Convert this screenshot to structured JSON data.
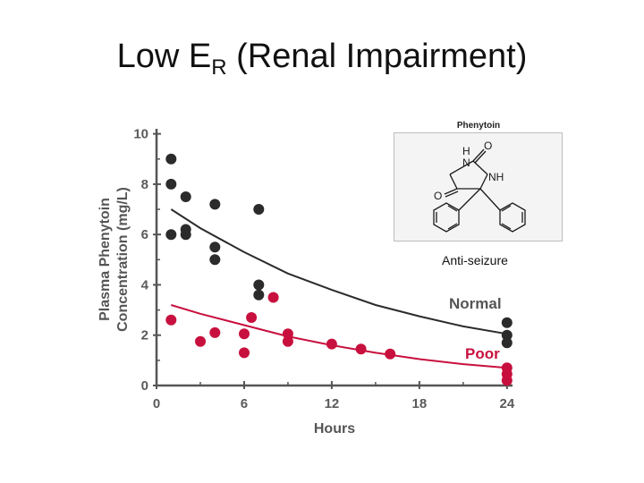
{
  "slide": {
    "title_main": "Low E",
    "title_sub": "R",
    "title_rest": " (Renal Impairment)"
  },
  "molecule": {
    "name": "Phenytoin",
    "caption": "Anti-seizure",
    "atoms": {
      "h": "H",
      "n": "N",
      "o": "O",
      "nh": "NH"
    }
  },
  "chart_data": {
    "type": "scatter",
    "xlabel": "Hours",
    "ylabel": "Plasma Phenytoin Concentration (mg/L)",
    "ylabel_lines": [
      "Plasma Phenytoin",
      "Concentration (mg/L)"
    ],
    "xlim": [
      0,
      24.5
    ],
    "ylim": [
      0,
      10.2
    ],
    "x_ticks": [
      "0",
      "6",
      "12",
      "18",
      "24"
    ],
    "y_ticks": [
      "0",
      "2",
      "4",
      "6",
      "8",
      "10"
    ],
    "x_tick_values": [
      0,
      6,
      12,
      18,
      24
    ],
    "y_tick_values": [
      0,
      2,
      4,
      6,
      8,
      10
    ],
    "grid": false,
    "colors": {
      "normal": "#2b2b2b",
      "poor": "#c8103e",
      "axis": "#555555"
    },
    "series": [
      {
        "name": "Normal",
        "color": "#2b2b2b",
        "points": [
          [
            1,
            9.0
          ],
          [
            1,
            8.0
          ],
          [
            1,
            6.0
          ],
          [
            2,
            7.5
          ],
          [
            2,
            6.2
          ],
          [
            2,
            6.0
          ],
          [
            4,
            7.2
          ],
          [
            4,
            5.5
          ],
          [
            4,
            5.0
          ],
          [
            7,
            7.0
          ],
          [
            7,
            4.0
          ],
          [
            7,
            3.6
          ],
          [
            24,
            2.5
          ],
          [
            24,
            2.0
          ],
          [
            24,
            1.7
          ]
        ],
        "fit": {
          "x": [
            1,
            3,
            6,
            9,
            12,
            15,
            18,
            21,
            24
          ],
          "y": [
            7.0,
            6.25,
            5.3,
            4.45,
            3.8,
            3.2,
            2.75,
            2.35,
            2.05
          ]
        }
      },
      {
        "name": "Poor",
        "color": "#c8103e",
        "points": [
          [
            1,
            2.6
          ],
          [
            3,
            1.75
          ],
          [
            4,
            2.1
          ],
          [
            6,
            2.05
          ],
          [
            6,
            1.3
          ],
          [
            6.5,
            2.7
          ],
          [
            8,
            3.5
          ],
          [
            9,
            2.05
          ],
          [
            9,
            1.75
          ],
          [
            12,
            1.65
          ],
          [
            14,
            1.45
          ],
          [
            16,
            1.25
          ],
          [
            24,
            0.7
          ],
          [
            24,
            0.45
          ],
          [
            24,
            0.2
          ]
        ],
        "fit": {
          "x": [
            1,
            3,
            6,
            9,
            12,
            15,
            18,
            21,
            24
          ],
          "y": [
            3.2,
            2.85,
            2.4,
            1.95,
            1.6,
            1.3,
            1.05,
            0.85,
            0.7
          ]
        }
      }
    ]
  }
}
